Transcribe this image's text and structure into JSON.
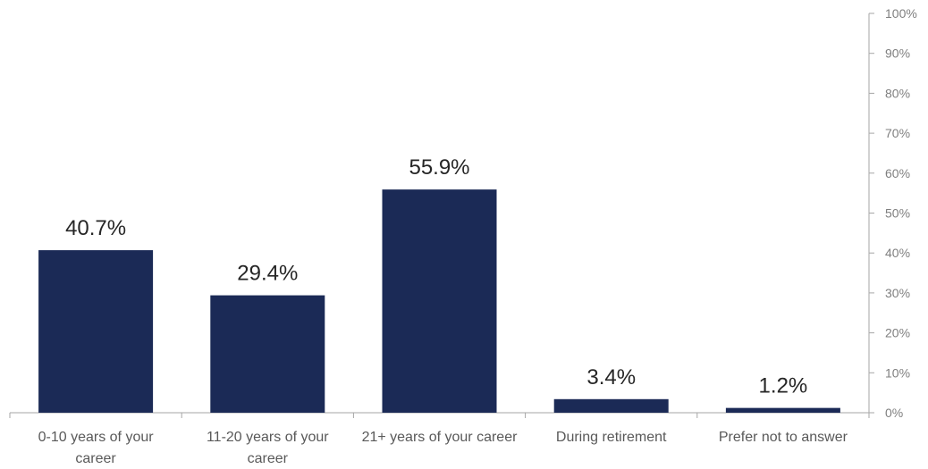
{
  "chart_data": {
    "type": "bar",
    "categories": [
      "0-10 years of your career",
      "11-20 years of your career",
      "21+ years of your career",
      "During retirement",
      "Prefer not to answer"
    ],
    "category_label_lines": [
      [
        "0-10 years of your",
        "career"
      ],
      [
        "11-20 years of your",
        "career"
      ],
      [
        "21+ years of your career"
      ],
      [
        "During retirement"
      ],
      [
        "Prefer not to answer"
      ]
    ],
    "values": [
      40.7,
      29.4,
      55.9,
      3.4,
      1.2
    ],
    "data_labels": [
      "40.7%",
      "29.4%",
      "55.9%",
      "3.4%",
      "1.2%"
    ],
    "title": "",
    "xlabel": "",
    "ylabel": "",
    "ylim": [
      0,
      100
    ],
    "y_ticks": [
      "0%",
      "10%",
      "20%",
      "30%",
      "40%",
      "50%",
      "60%",
      "70%",
      "80%",
      "90%",
      "100%"
    ],
    "y_axis_side": "right",
    "grid": false,
    "legend": "none",
    "bar_color": "#1b2a56"
  }
}
